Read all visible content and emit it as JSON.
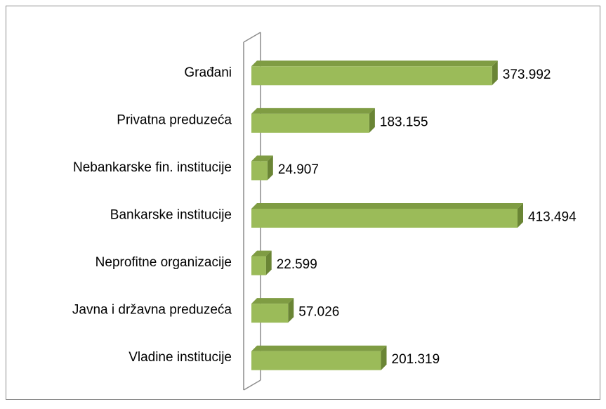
{
  "chart_data": {
    "type": "bar",
    "orientation": "horizontal",
    "categories": [
      "Građani",
      "Privatna preduzeća",
      "Nebankarske fin. institucije",
      "Bankarske institucije",
      "Neprofitne organizacije",
      "Javna i državna preduzeća",
      "Vladine institucije"
    ],
    "values": [
      373992,
      183155,
      24907,
      413494,
      22599,
      57026,
      201319
    ],
    "value_labels": [
      "373.992",
      "183.155",
      "24.907",
      "413.494",
      "22.599",
      "57.026",
      "201.319"
    ],
    "color": "#9bbb59"
  }
}
